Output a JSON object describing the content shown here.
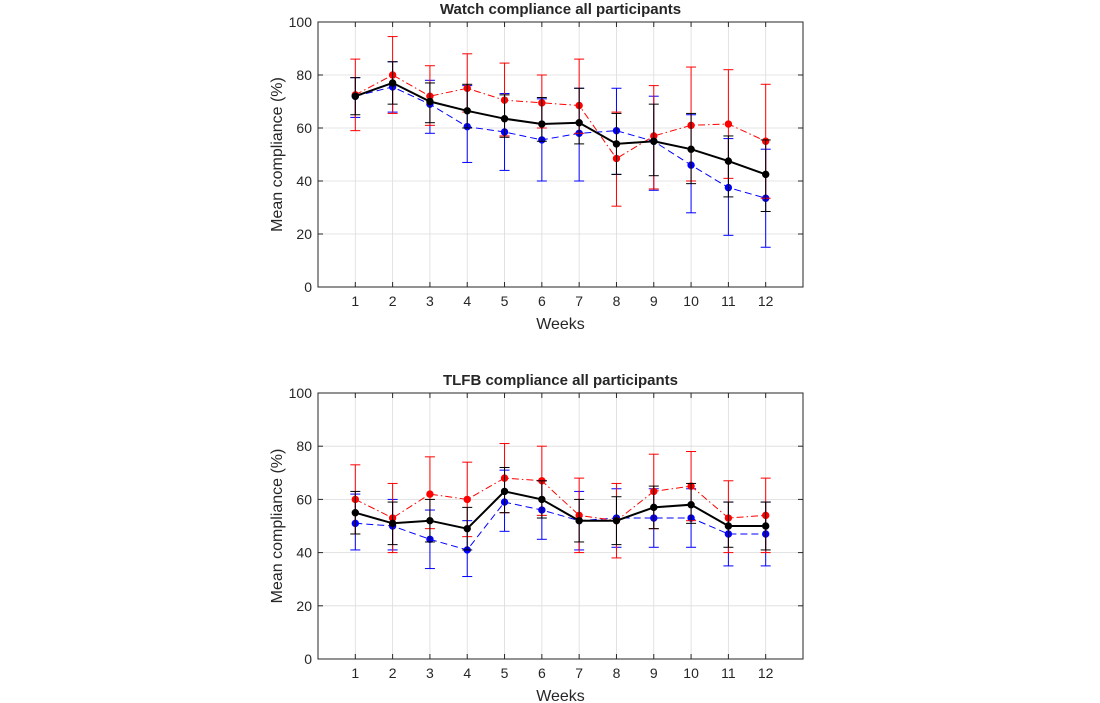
{
  "chart_data": [
    {
      "type": "line",
      "title": "Watch compliance all participants",
      "xlabel": "Weeks",
      "ylabel": "Mean compliance (%)",
      "xlim": [
        0,
        13
      ],
      "ylim": [
        0,
        100
      ],
      "xticks": [
        1,
        2,
        3,
        4,
        5,
        6,
        7,
        8,
        9,
        10,
        11,
        12
      ],
      "yticks": [
        0,
        20,
        40,
        60,
        80,
        100
      ],
      "grid": true,
      "x": [
        1,
        2,
        3,
        4,
        5,
        6,
        7,
        8,
        9,
        10,
        11,
        12
      ],
      "series": [
        {
          "color": "#0000ff",
          "line_style": "dashed",
          "values": [
            72,
            75.5,
            69,
            60.5,
            58.5,
            55.5,
            58,
            59,
            55,
            46,
            37.5,
            33.5
          ],
          "err_low": [
            64,
            66,
            58,
            47,
            44,
            40,
            40,
            42.5,
            36.5,
            28,
            19.5,
            15
          ],
          "err_high": [
            79,
            85,
            78,
            76,
            73,
            71,
            75,
            75,
            72,
            65,
            56,
            52
          ]
        },
        {
          "color": "#ff0000",
          "line_style": "dashdot",
          "values": [
            72.5,
            80,
            72,
            75,
            70.5,
            69.5,
            68.5,
            48.5,
            57,
            61,
            61.5,
            55
          ],
          "err_low": [
            59,
            65.5,
            61,
            66,
            57,
            60,
            58,
            30.5,
            37,
            40,
            41,
            33.5
          ],
          "err_high": [
            86,
            94.5,
            83.5,
            88,
            84.5,
            80,
            86,
            66,
            76,
            83,
            82,
            76.5
          ]
        },
        {
          "color": "#000000",
          "line_style": "solid",
          "values": [
            72,
            77,
            70,
            66.5,
            63.5,
            61.5,
            62,
            54,
            55,
            52,
            47.5,
            42.5
          ],
          "err_low": [
            65,
            69,
            62,
            60,
            56.5,
            55,
            54,
            42.5,
            42,
            39,
            34,
            28.5
          ],
          "err_high": [
            79,
            85,
            77,
            76.5,
            72.5,
            71.5,
            75,
            65.5,
            69,
            65.5,
            57,
            55.5
          ]
        }
      ]
    },
    {
      "type": "line",
      "title": "TLFB compliance all participants",
      "xlabel": "Weeks",
      "ylabel": "Mean compliance (%)",
      "xlim": [
        0,
        13
      ],
      "ylim": [
        0,
        100
      ],
      "xticks": [
        1,
        2,
        3,
        4,
        5,
        6,
        7,
        8,
        9,
        10,
        11,
        12
      ],
      "yticks": [
        0,
        20,
        40,
        60,
        80,
        100
      ],
      "grid": true,
      "x": [
        1,
        2,
        3,
        4,
        5,
        6,
        7,
        8,
        9,
        10,
        11,
        12
      ],
      "series": [
        {
          "color": "#0000ff",
          "line_style": "dashed",
          "values": [
            51,
            50,
            45,
            41,
            59,
            56,
            52,
            53,
            53,
            53,
            47,
            47
          ],
          "err_low": [
            41,
            41,
            34,
            31,
            48,
            45,
            41,
            42,
            42,
            42,
            35,
            35
          ],
          "err_high": [
            62,
            60,
            56,
            52,
            71,
            67,
            63,
            64,
            64,
            64,
            59,
            59
          ]
        },
        {
          "color": "#ff0000",
          "line_style": "dashdot",
          "values": [
            60,
            53,
            62,
            60,
            68,
            67,
            54,
            52,
            63,
            65,
            53,
            54
          ],
          "err_low": [
            47,
            40,
            49,
            46,
            55,
            54,
            40,
            38,
            49,
            52,
            40,
            40
          ],
          "err_high": [
            73,
            66,
            76,
            74,
            81,
            80,
            68,
            66,
            77,
            78,
            67,
            68
          ]
        },
        {
          "color": "#000000",
          "line_style": "solid",
          "values": [
            55,
            51,
            52,
            49,
            63,
            60,
            52,
            52,
            57,
            58,
            50,
            50
          ],
          "err_low": [
            47,
            43,
            44,
            41,
            55,
            53,
            44,
            43,
            49,
            51,
            42,
            41
          ],
          "err_high": [
            63,
            59,
            60,
            57,
            72,
            67,
            60,
            61,
            65,
            66,
            59,
            59
          ]
        }
      ]
    }
  ]
}
